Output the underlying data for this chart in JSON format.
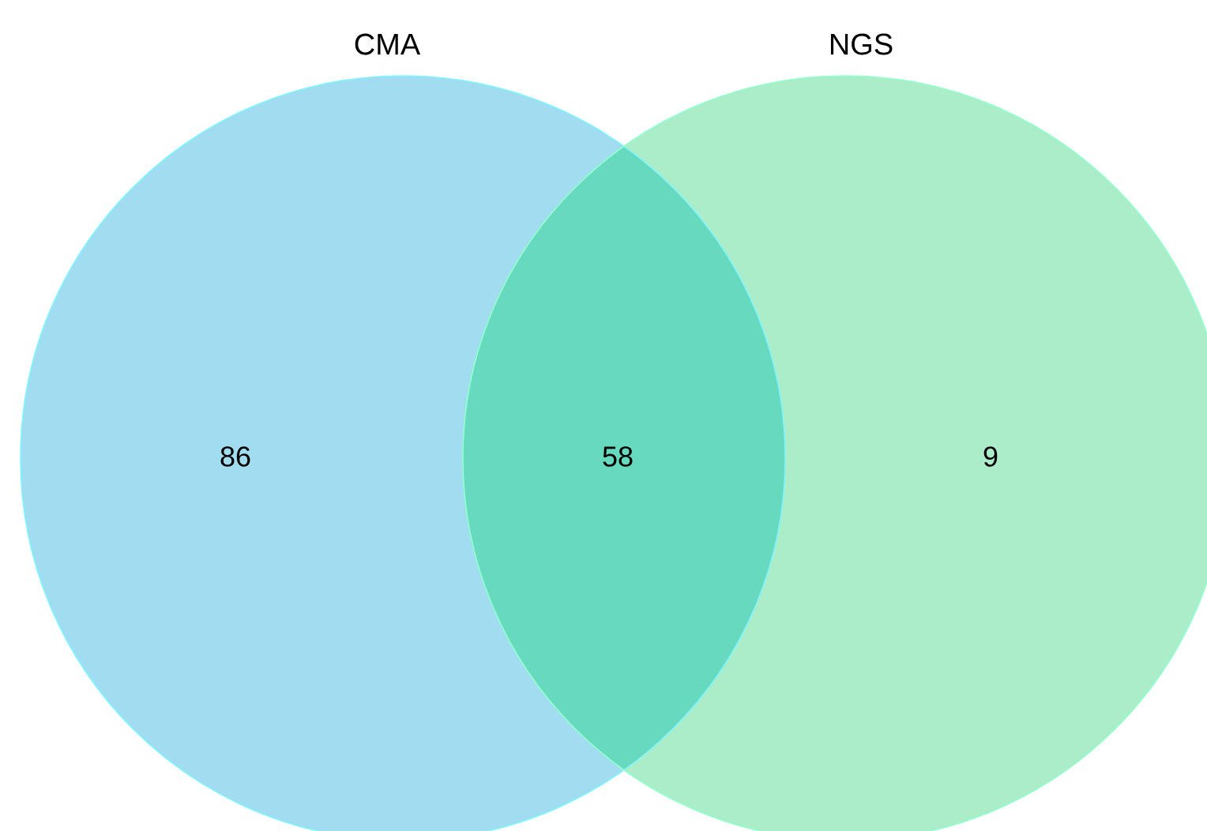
{
  "chart_data": {
    "type": "other",
    "categories": [
      "CMA",
      null,
      "NGS"
    ],
    "values": [
      86,
      58,
      9
    ],
    "colors": [
      "#a1dcf0",
      "#66d9be",
      "#aaedc8"
    ],
    "data_labels": true
  }
}
